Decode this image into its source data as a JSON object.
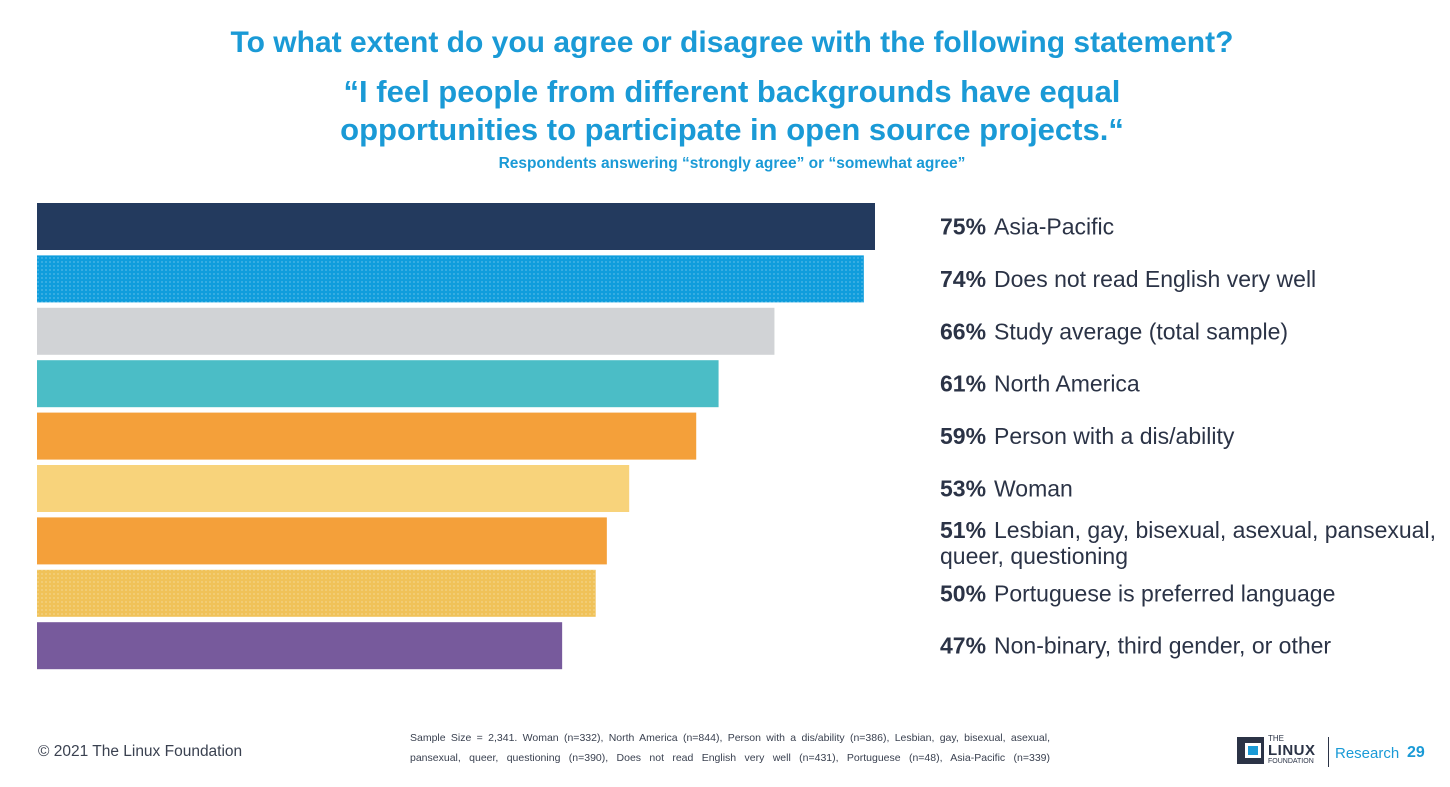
{
  "question": "To what extent do you agree or disagree with the following statement?",
  "statement_line1": "“I feel people from different backgrounds have equal",
  "statement_line2": "opportunities to participate in open source projects.“",
  "subtitle": "Respondents answering “strongly agree” or “somewhat agree”",
  "chart_data": {
    "type": "bar",
    "orientation": "horizontal",
    "title": "To what extent do you agree or disagree with the following statement?",
    "subtitle": "Respondents answering “strongly agree” or “somewhat agree”",
    "xlim": [
      0,
      75
    ],
    "grid": false,
    "legend": "none",
    "categories": [
      [
        "Asia-Pacific"
      ],
      [
        "Does not read English very well"
      ],
      [
        "Study average (total sample)"
      ],
      [
        "North America"
      ],
      [
        "Person with a dis/ability"
      ],
      [
        "Woman"
      ],
      [
        "Lesbian, gay, bisexual, asexual, pansexual,",
        "queer, questioning"
      ],
      [
        "Portuguese is preferred language"
      ],
      [
        "Non-binary, third gender, or other"
      ]
    ],
    "values": [
      75,
      74,
      66,
      61,
      59,
      53,
      51,
      50,
      47
    ],
    "value_labels": [
      "75%",
      "74%",
      "66%",
      "61%",
      "59%",
      "53%",
      "51%",
      "50%",
      "47%"
    ],
    "colors": [
      "#233a5e",
      "#0f9ddc",
      "#d1d3d6",
      "#4bbdc6",
      "#f4a03a",
      "#f8d37b",
      "#f4a03a",
      "#f0c259",
      "#775a9c"
    ],
    "patterned": [
      false,
      true,
      false,
      false,
      false,
      false,
      false,
      true,
      false
    ]
  },
  "footer": {
    "copyright": "© 2021 The Linux Foundation",
    "sample_note": "Sample Size = 2,341. Woman (n=332), North America (n=844), Person with a dis/ability (n=386), Lesbian, gay, bisexual, asexual, pansexual, queer, questioning (n=390), Does not read English very well (n=431), Portuguese (n=48), Asia-Pacific (n=339)",
    "logo_top": "THE",
    "logo_main": "LINUX",
    "logo_bottom": "FOUNDATION",
    "research_label": "Research",
    "page_number": "29"
  }
}
